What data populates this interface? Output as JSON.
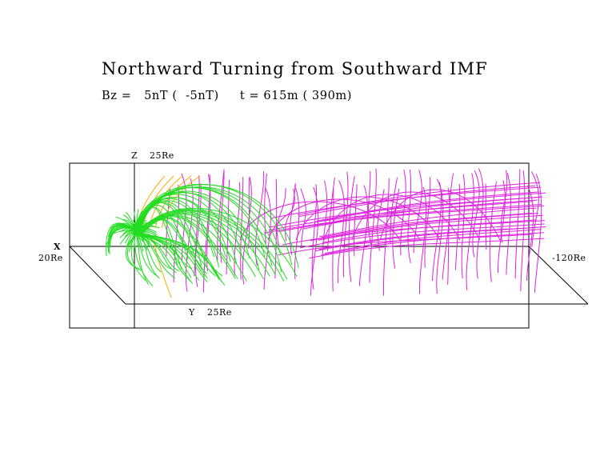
{
  "title": "Northward Turning from Southward IMF",
  "params": "Bz =   5nT (  -5nT)     t = 615m ( 390m)",
  "axes": {
    "z_axis": "Z",
    "z_extent": "25Re",
    "x_axis": "X",
    "x_near": "20Re",
    "x_far": "-120Re",
    "y_axis": "Y",
    "y_extent": "25Re"
  },
  "colors": {
    "closed_field_lines": "#22dd22",
    "open_field_lines": "#dd22dd",
    "extra_lines": "#ffaa00",
    "frame": "#000000"
  }
}
